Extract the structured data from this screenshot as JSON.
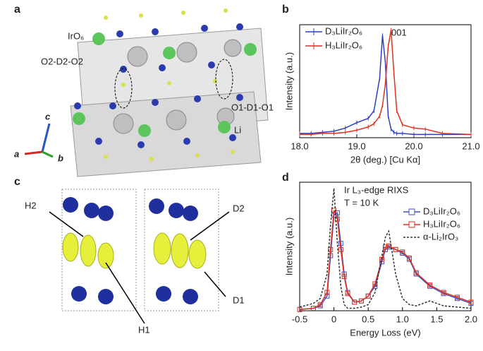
{
  "structure_panel": {
    "label": "a",
    "iro6": "IrO₆",
    "o2_d2_o2": "O2-D2-O2",
    "o1_d1_o1": "O1-D1-O1",
    "li": "Li",
    "axis_c": "c",
    "axis_a": "a",
    "axis_b": "b"
  },
  "density_panel": {
    "label": "c",
    "h2": "H2",
    "h1": "H1",
    "d2": "D2",
    "d1": "D1"
  },
  "chart_data": [
    {
      "type": "line",
      "panel_label": "b",
      "xlabel": "2θ (deg.) [Cu Kα]",
      "ylabel": "Intensity (a.u.)",
      "annotation": "001",
      "x": [
        18.0,
        18.2,
        18.4,
        18.6,
        18.8,
        19.0,
        19.2,
        19.3,
        19.4,
        19.45,
        19.5,
        19.55,
        19.6,
        19.65,
        19.7,
        19.8,
        20.0,
        20.2,
        20.5,
        21.0
      ],
      "series": [
        {
          "name": "D₃LiIr₂O₆",
          "color": "#2f3fbf",
          "marker": "plus",
          "values": [
            0.04,
            0.04,
            0.05,
            0.06,
            0.09,
            0.14,
            0.18,
            0.25,
            0.55,
            0.95,
            0.7,
            0.2,
            0.08,
            0.05,
            0.04,
            0.04,
            0.03,
            0.03,
            0.03,
            0.03
          ]
        },
        {
          "name": "H₃LiIr₂O₆",
          "color": "#e0321f",
          "marker": "plus",
          "values": [
            0.03,
            0.03,
            0.04,
            0.04,
            0.05,
            0.07,
            0.1,
            0.13,
            0.2,
            0.3,
            0.5,
            0.85,
            1.0,
            0.6,
            0.25,
            0.12,
            0.09,
            0.08,
            0.04,
            0.03
          ]
        }
      ],
      "xlim": [
        18.0,
        21.0
      ],
      "xticks": [
        {
          "value": 18.0,
          "label": "18.0"
        },
        {
          "value": 19.0,
          "label": "19.0"
        },
        {
          "value": 20.0,
          "label": "20.0"
        },
        {
          "value": 21.0,
          "label": "21.0"
        }
      ],
      "ylim": [
        0,
        1.05
      ]
    },
    {
      "type": "line",
      "panel_label": "d",
      "xlabel": "Energy Loss (eV)",
      "ylabel": "Intensity (a.u.)",
      "annotation": "Ir L₃-edge RIXS",
      "annotation2": "T = 10 K",
      "x": [
        -0.5,
        -0.3,
        -0.2,
        -0.1,
        -0.05,
        0,
        0.05,
        0.1,
        0.15,
        0.2,
        0.3,
        0.4,
        0.5,
        0.6,
        0.7,
        0.75,
        0.8,
        0.9,
        1.0,
        1.1,
        1.2,
        1.4,
        1.6,
        1.8,
        2.0
      ],
      "series": [
        {
          "name": "D₃LiIr₂O₆",
          "color": "#3a55c8",
          "marker": "square",
          "values": [
            0.01,
            0.02,
            0.04,
            0.12,
            0.45,
            0.78,
            0.8,
            0.55,
            0.3,
            0.15,
            0.07,
            0.08,
            0.12,
            0.2,
            0.4,
            0.5,
            0.52,
            0.5,
            0.47,
            0.42,
            0.3,
            0.2,
            0.14,
            0.1,
            0.06
          ]
        },
        {
          "name": "H₃LiIr₂O₆",
          "color": "#e0321f",
          "marker": "square",
          "values": [
            0.01,
            0.02,
            0.05,
            0.15,
            0.5,
            0.82,
            0.75,
            0.5,
            0.28,
            0.14,
            0.07,
            0.08,
            0.12,
            0.22,
            0.42,
            0.52,
            0.53,
            0.5,
            0.48,
            0.43,
            0.31,
            0.21,
            0.15,
            0.11,
            0.07
          ]
        },
        {
          "name": "α-Li₂IrO₃",
          "color": "#333333",
          "line_style": "dashed",
          "values": [
            0.03,
            0.06,
            0.1,
            0.3,
            0.7,
            1.0,
            0.55,
            0.2,
            0.05,
            0.02,
            0.02,
            0.03,
            0.05,
            0.15,
            0.45,
            0.6,
            0.65,
            0.3,
            0.1,
            0.05,
            0.04,
            0.08,
            0.04,
            0.03,
            0.02
          ]
        }
      ],
      "xlim": [
        -0.5,
        2.0
      ],
      "xticks": [
        -0.5,
        0,
        0.5,
        {
          "value": 1.0,
          "label": "1.0"
        },
        1.5,
        {
          "value": 2.0,
          "label": "2.0"
        }
      ],
      "ylim": [
        0,
        1.05
      ]
    }
  ]
}
